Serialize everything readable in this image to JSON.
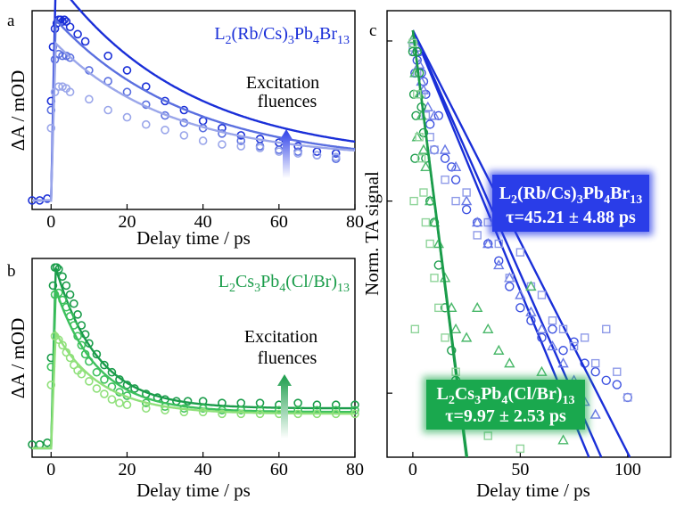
{
  "panels": {
    "a": {
      "label": "a",
      "compound_prefix": "L",
      "compound": [
        [
          "L",
          ""
        ],
        [
          "2",
          "sub"
        ],
        [
          "(Rb/Cs)",
          ""
        ],
        [
          "3",
          "sub"
        ],
        [
          "Pb",
          ""
        ],
        [
          "4",
          "sub"
        ],
        [
          "Br",
          ""
        ],
        [
          "13",
          "sub"
        ]
      ],
      "arrow_text_1": "Excitation",
      "arrow_text_2": "fluences"
    },
    "b": {
      "label": "b",
      "compound": [
        [
          "L",
          ""
        ],
        [
          "2",
          "sub"
        ],
        [
          "Cs",
          ""
        ],
        [
          "3",
          "sub"
        ],
        [
          "Pb",
          ""
        ],
        [
          "4",
          "sub"
        ],
        [
          "(Cl/Br)",
          ""
        ],
        [
          "13",
          "sub"
        ]
      ],
      "arrow_text_1": "Excitation",
      "arrow_text_2": "fluences"
    },
    "c": {
      "label": "c",
      "box_blue_formula": [
        [
          "L",
          ""
        ],
        [
          "2",
          "sub"
        ],
        [
          "(Rb/Cs)",
          ""
        ],
        [
          "3",
          "sub"
        ],
        [
          "Pb",
          ""
        ],
        [
          "4",
          "sub"
        ],
        [
          "Br",
          ""
        ],
        [
          "13",
          "sub"
        ]
      ],
      "box_blue_tau": "τ=45.21 ± 4.88 ps",
      "box_green_formula": [
        [
          "L",
          ""
        ],
        [
          "2",
          "sub"
        ],
        [
          "Cs",
          ""
        ],
        [
          "3",
          "sub"
        ],
        [
          "Pb",
          ""
        ],
        [
          "4",
          "sub"
        ],
        [
          "(Cl/Br)",
          ""
        ],
        [
          "13",
          "sub"
        ]
      ],
      "box_green_tau": "τ=9.97 ± 2.53 ps"
    }
  },
  "colors": {
    "blue_dark": "#1a2fd8",
    "blue_mid": "#5a6fe0",
    "blue_light": "#9aa6ea",
    "green_dark": "#1a9c4a",
    "green_mid": "#3cc05c",
    "green_light": "#8fe07a",
    "box_blue": "#2a3de8",
    "box_green": "#1aa84e"
  },
  "chart_data": [
    {
      "type": "line",
      "panel": "a",
      "xlabel": "Delay time / ps",
      "ylabel": "ΔA / mOD",
      "xlim": [
        -5,
        80
      ],
      "xticks": [
        0,
        20,
        40,
        60,
        80
      ],
      "ylim": [
        -0.05,
        1.05
      ],
      "yticks_labeled": false,
      "series": [
        {
          "color": "#1a2fd8",
          "amp": 1.0,
          "tau": 35,
          "offset": 0.22,
          "x": [
            -5,
            -3,
            -1,
            0,
            0.5,
            1,
            1.5,
            2,
            2.5,
            3,
            3.5,
            4,
            5,
            7,
            9,
            15,
            20,
            25,
            30,
            35,
            40,
            45,
            50,
            55,
            60,
            65,
            70,
            75
          ],
          "y": [
            0.0,
            0.0,
            0.01,
            0.55,
            0.85,
            0.95,
            0.98,
            1.0,
            1.0,
            0.99,
            1.0,
            0.99,
            0.96,
            0.92,
            0.88,
            0.8,
            0.72,
            0.63,
            0.55,
            0.5,
            0.44,
            0.4,
            0.36,
            0.34,
            0.32,
            0.3,
            0.27,
            0.26
          ]
        },
        {
          "color": "#5a6fe0",
          "amp": 0.8,
          "tau": 35,
          "offset": 0.2,
          "x": [
            0,
            1,
            2,
            3,
            4,
            5,
            10,
            15,
            20,
            25,
            30,
            35,
            40,
            45,
            50,
            55,
            60,
            65,
            70,
            75
          ],
          "y": [
            0.5,
            0.78,
            0.81,
            0.8,
            0.8,
            0.79,
            0.72,
            0.66,
            0.6,
            0.53,
            0.47,
            0.43,
            0.4,
            0.37,
            0.33,
            0.3,
            0.28,
            0.27,
            0.25,
            0.23
          ]
        },
        {
          "color": "#9aa6ea",
          "amp": 0.64,
          "tau": 30,
          "offset": 0.23,
          "x": [
            0,
            1,
            2,
            3,
            4,
            5,
            10,
            15,
            20,
            25,
            30,
            35,
            40,
            45,
            50,
            55,
            60,
            65,
            70,
            75
          ],
          "y": [
            0.4,
            0.6,
            0.63,
            0.63,
            0.62,
            0.6,
            0.56,
            0.5,
            0.46,
            0.42,
            0.39,
            0.36,
            0.33,
            0.31,
            0.3,
            0.29,
            0.27,
            0.26,
            0.25,
            0.24
          ]
        }
      ]
    },
    {
      "type": "line",
      "panel": "b",
      "xlabel": "Delay time / ps",
      "ylabel": "ΔA / mOD",
      "xlim": [
        -5,
        80
      ],
      "xticks": [
        0,
        20,
        40,
        60,
        80
      ],
      "ylim": [
        -0.05,
        1.05
      ],
      "yticks_labeled": false,
      "series": [
        {
          "color": "#1a9c4a",
          "amp": 0.78,
          "tau": 11,
          "offset": 0.22,
          "x": [
            -5,
            -3,
            -1,
            0,
            0.5,
            1,
            1.5,
            2,
            3,
            4,
            5,
            6,
            7,
            8,
            9,
            10,
            12,
            14,
            16,
            18,
            20,
            22,
            25,
            28,
            30,
            33,
            36,
            40,
            45,
            50,
            55,
            60,
            65,
            70,
            75,
            80
          ],
          "y": [
            0.02,
            0.02,
            0.03,
            0.5,
            0.9,
            1.0,
            1.0,
            0.99,
            0.95,
            0.9,
            0.85,
            0.8,
            0.74,
            0.68,
            0.63,
            0.58,
            0.52,
            0.46,
            0.42,
            0.38,
            0.35,
            0.33,
            0.3,
            0.28,
            0.27,
            0.26,
            0.26,
            0.26,
            0.25,
            0.25,
            0.25,
            0.24,
            0.25,
            0.24,
            0.24,
            0.24
          ]
        },
        {
          "color": "#3cc05c",
          "amp": 0.68,
          "tau": 11,
          "offset": 0.2,
          "x": [
            0,
            1,
            2,
            3,
            4,
            5,
            6,
            7,
            8,
            9,
            10,
            12,
            14,
            16,
            18,
            20,
            25,
            30,
            35,
            40,
            45,
            50,
            55,
            60,
            65,
            70,
            75,
            80
          ],
          "y": [
            0.45,
            0.85,
            0.86,
            0.82,
            0.78,
            0.73,
            0.68,
            0.62,
            0.57,
            0.52,
            0.48,
            0.42,
            0.38,
            0.34,
            0.31,
            0.29,
            0.25,
            0.23,
            0.22,
            0.22,
            0.21,
            0.21,
            0.21,
            0.21,
            0.21,
            0.21,
            0.21,
            0.21
          ]
        },
        {
          "color": "#8fe07a",
          "amp": 0.45,
          "tau": 12,
          "offset": 0.19,
          "x": [
            0,
            1,
            2,
            3,
            4,
            5,
            6,
            7,
            8,
            10,
            12,
            14,
            16,
            18,
            20,
            25,
            30,
            35,
            40,
            45,
            50,
            55,
            60,
            65,
            70,
            75,
            80
          ],
          "y": [
            0.35,
            0.62,
            0.6,
            0.57,
            0.53,
            0.5,
            0.46,
            0.43,
            0.41,
            0.37,
            0.33,
            0.3,
            0.27,
            0.25,
            0.24,
            0.22,
            0.21,
            0.2,
            0.2,
            0.19,
            0.19,
            0.19,
            0.19,
            0.19,
            0.19,
            0.19,
            0.19
          ]
        }
      ]
    },
    {
      "type": "scatter",
      "panel": "c",
      "xlabel": "Delay time / ps",
      "ylabel": "Norm. TA signal",
      "xlim": [
        -12,
        120
      ],
      "xticks": [
        0,
        50,
        100
      ],
      "ylim": [
        0,
        1.02
      ],
      "yticks_labeled": false,
      "series": [
        {
          "group": "blue",
          "marker": "circle",
          "color": "#3a4fe0",
          "fit_slope": 0.0122,
          "x": [
            0,
            1,
            2,
            3,
            4,
            5,
            6,
            8,
            10,
            12,
            15,
            18,
            20,
            25,
            30,
            35,
            40,
            45,
            50,
            55,
            60,
            65,
            70,
            75,
            80,
            85,
            90,
            95,
            100
          ],
          "y": [
            0.97,
            0.9,
            0.93,
            0.95,
            0.9,
            0.88,
            0.85,
            0.78,
            0.72,
            0.8,
            0.7,
            0.68,
            0.65,
            0.58,
            0.55,
            0.5,
            0.46,
            0.4,
            0.35,
            0.32,
            0.28,
            0.3,
            0.25,
            0.27,
            0.22,
            0.2,
            0.18,
            0.17,
            0.14
          ]
        },
        {
          "group": "blue",
          "marker": "triangle",
          "color": "#6a7ae6",
          "fit_slope": 0.0114,
          "x": [
            0,
            1,
            2,
            3,
            4,
            5,
            7,
            10,
            15,
            20,
            25,
            30,
            35,
            40,
            45,
            50,
            55,
            60,
            65,
            70,
            75,
            80,
            85
          ],
          "y": [
            0.98,
            0.95,
            0.96,
            0.92,
            0.88,
            0.86,
            0.82,
            0.8,
            0.72,
            0.68,
            0.6,
            0.55,
            0.5,
            0.45,
            0.42,
            0.38,
            0.34,
            0.3,
            0.26,
            0.22,
            0.18,
            0.13,
            0.1
          ]
        },
        {
          "group": "blue",
          "marker": "square",
          "color": "#8f9be8",
          "fit_slope": 0.0099,
          "x": [
            0,
            2,
            4,
            6,
            8,
            10,
            15,
            20,
            25,
            30,
            35,
            40,
            45,
            50,
            55,
            60,
            65,
            70,
            75,
            80,
            85,
            90,
            95,
            100
          ],
          "y": [
            0.96,
            0.9,
            0.85,
            0.8,
            0.75,
            0.72,
            0.65,
            0.6,
            0.62,
            0.52,
            0.55,
            0.5,
            0.42,
            0.48,
            0.4,
            0.38,
            0.32,
            0.3,
            0.26,
            0.28,
            0.22,
            0.3,
            0.2,
            0.14
          ]
        },
        {
          "group": "green",
          "marker": "circle",
          "color": "#1a9c4a",
          "fit_slope": 0.04,
          "x": [
            0,
            0.5,
            1,
            1.5,
            2,
            3,
            4,
            5,
            6,
            8,
            10,
            12,
            15,
            18,
            20
          ],
          "y": [
            0.95,
            0.85,
            0.7,
            0.8,
            0.95,
            0.9,
            0.82,
            0.76,
            0.7,
            0.6,
            0.55,
            0.45,
            0.35,
            0.25,
            0.18
          ]
        },
        {
          "group": "green",
          "marker": "triangle",
          "color": "#4ab86a",
          "fit_slope": 0.0402,
          "x": [
            0,
            1,
            2,
            3,
            4,
            5,
            6,
            8,
            10,
            12,
            15,
            18,
            20,
            25,
            30,
            35,
            40,
            45,
            50,
            55,
            60,
            65,
            70
          ],
          "y": [
            0.98,
            0.9,
            0.75,
            0.85,
            0.8,
            0.72,
            0.68,
            0.6,
            0.55,
            0.5,
            0.42,
            0.35,
            0.3,
            0.28,
            0.35,
            0.3,
            0.25,
            0.22,
            0.15,
            0.4,
            0.2,
            0.12,
            0.04
          ]
        },
        {
          "group": "green",
          "marker": "square",
          "color": "#8fd49a",
          "fit_slope": 0.0395,
          "x": [
            0,
            0.5,
            1,
            2,
            3,
            4,
            5,
            6,
            8,
            10,
            12,
            15,
            20,
            25,
            30,
            35,
            40,
            50
          ],
          "y": [
            0.97,
            0.6,
            0.3,
            0.85,
            0.75,
            0.7,
            0.62,
            0.55,
            0.5,
            0.42,
            0.35,
            0.28,
            0.2,
            0.15,
            0.12,
            0.05,
            0.1,
            0.02
          ]
        }
      ]
    }
  ]
}
